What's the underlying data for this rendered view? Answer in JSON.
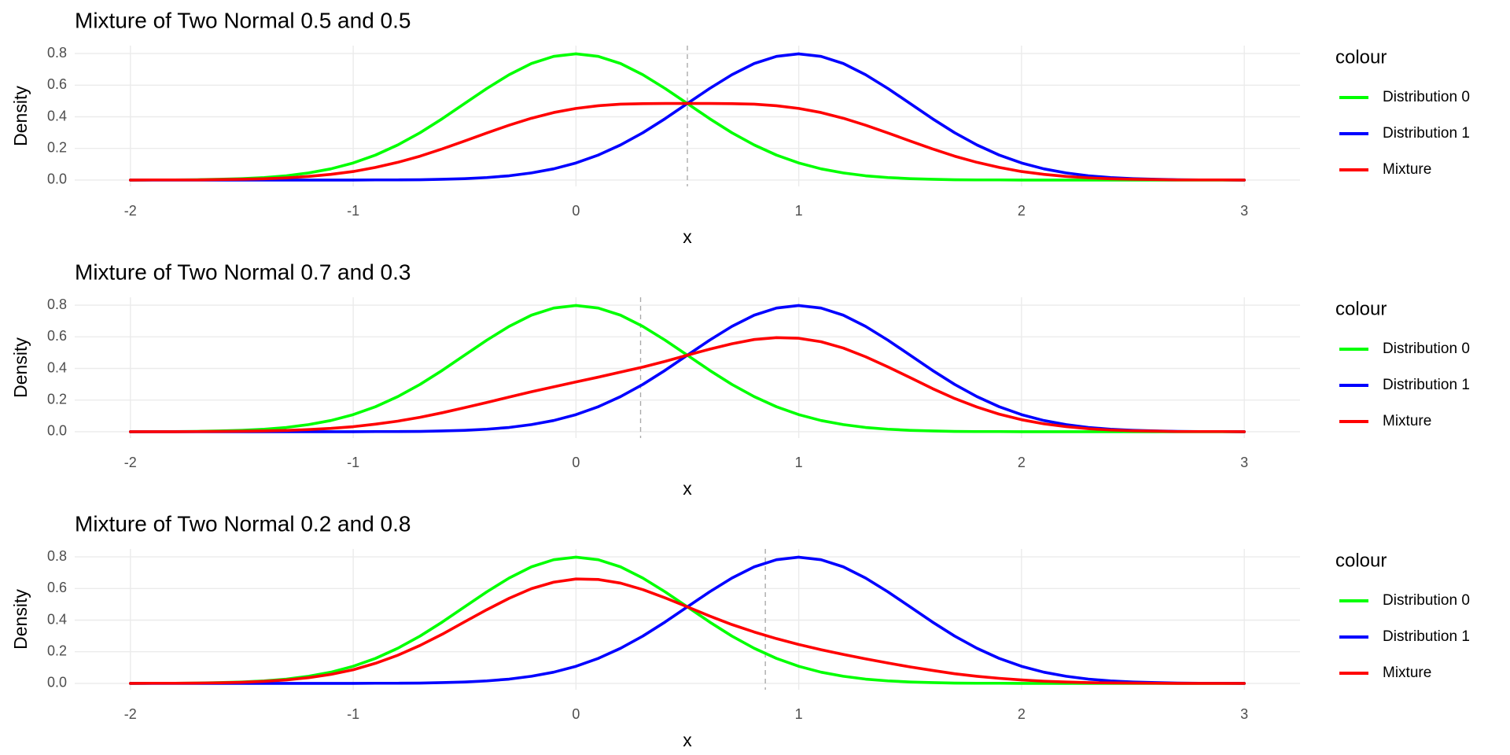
{
  "chart_data": [
    {
      "type": "line",
      "title": "Mixture of Two Normal 0.5 and 0.5",
      "x_label": "x",
      "y_label": "Density",
      "legend_title": "colour",
      "legend": "right",
      "grid": true,
      "xlim": [
        -2.25,
        3.25
      ],
      "ylim": [
        -0.04,
        0.85
      ],
      "xticks": [
        -2,
        -1,
        0,
        1,
        2,
        3
      ],
      "yticks": [
        {
          "value": 0,
          "label": "0.0"
        },
        0.2,
        0.4,
        0.6,
        0.8
      ],
      "vline": 0.5,
      "vline_color": "#aaaaaa",
      "x": [
        -2,
        -1.9,
        -1.8,
        -1.7,
        -1.6,
        -1.5,
        -1.4,
        -1.3,
        -1.2,
        -1.1,
        -1,
        -0.9,
        -0.8,
        -0.7,
        -0.6,
        -0.5,
        -0.4,
        -0.3,
        -0.2,
        -0.1,
        0,
        0.1,
        0.2,
        0.3,
        0.4,
        0.5,
        0.6,
        0.7,
        0.8,
        0.9,
        1,
        1.1,
        1.2,
        1.3,
        1.4,
        1.5,
        1.6,
        1.7,
        1.8,
        1.9,
        2,
        2.1,
        2.2,
        2.3,
        2.4,
        2.5,
        2.6,
        2.7,
        2.8,
        2.9,
        3
      ],
      "series": [
        {
          "name": "Distribution 0",
          "color": "#00ff00",
          "values": [
            0,
            0.001,
            0.001,
            0.002,
            0.005,
            0.009,
            0.016,
            0.027,
            0.045,
            0.071,
            0.108,
            0.158,
            0.222,
            0.299,
            0.388,
            0.484,
            0.579,
            0.666,
            0.737,
            0.782,
            0.798,
            0.782,
            0.737,
            0.666,
            0.579,
            0.484,
            0.388,
            0.299,
            0.222,
            0.158,
            0.108,
            0.071,
            0.045,
            0.027,
            0.016,
            0.009,
            0.005,
            0.002,
            0.001,
            0.001,
            0,
            0,
            0,
            0,
            0,
            0,
            0,
            0,
            0,
            0,
            0
          ]
        },
        {
          "name": "Distribution 1",
          "color": "#0000ff",
          "values": [
            0,
            0,
            0,
            0,
            0,
            0,
            0,
            0,
            0,
            0,
            0,
            0.001,
            0.001,
            0.002,
            0.005,
            0.009,
            0.016,
            0.027,
            0.045,
            0.071,
            0.108,
            0.158,
            0.222,
            0.299,
            0.388,
            0.484,
            0.579,
            0.666,
            0.737,
            0.782,
            0.798,
            0.782,
            0.737,
            0.666,
            0.579,
            0.484,
            0.388,
            0.299,
            0.222,
            0.158,
            0.108,
            0.071,
            0.045,
            0.027,
            0.016,
            0.009,
            0.005,
            0.002,
            0.001,
            0.001,
            0
          ]
        },
        {
          "name": "Mixture",
          "color": "#ff0000",
          "values": [
            0,
            0.001,
            0.001,
            0.001,
            0.003,
            0.005,
            0.008,
            0.014,
            0.023,
            0.036,
            0.054,
            0.08,
            0.112,
            0.151,
            0.197,
            0.247,
            0.298,
            0.347,
            0.391,
            0.427,
            0.453,
            0.47,
            0.48,
            0.483,
            0.484,
            0.484,
            0.484,
            0.483,
            0.48,
            0.47,
            0.453,
            0.427,
            0.391,
            0.347,
            0.298,
            0.247,
            0.197,
            0.151,
            0.112,
            0.08,
            0.054,
            0.036,
            0.023,
            0.014,
            0.008,
            0.005,
            0.003,
            0.001,
            0.001,
            0.001,
            0
          ]
        }
      ]
    },
    {
      "type": "line",
      "title": "Mixture of Two Normal 0.7 and 0.3",
      "x_label": "x",
      "y_label": "Density",
      "legend_title": "colour",
      "legend": "right",
      "grid": true,
      "xlim": [
        -2.25,
        3.25
      ],
      "ylim": [
        -0.04,
        0.85
      ],
      "xticks": [
        -2,
        -1,
        0,
        1,
        2,
        3
      ],
      "yticks": [
        {
          "value": 0,
          "label": "0.0"
        },
        0.2,
        0.4,
        0.6,
        0.8
      ],
      "vline": 0.29,
      "vline_color": "#aaaaaa",
      "x": [
        -2,
        -1.9,
        -1.8,
        -1.7,
        -1.6,
        -1.5,
        -1.4,
        -1.3,
        -1.2,
        -1.1,
        -1,
        -0.9,
        -0.8,
        -0.7,
        -0.6,
        -0.5,
        -0.4,
        -0.3,
        -0.2,
        -0.1,
        0,
        0.1,
        0.2,
        0.3,
        0.4,
        0.5,
        0.6,
        0.7,
        0.8,
        0.9,
        1,
        1.1,
        1.2,
        1.3,
        1.4,
        1.5,
        1.6,
        1.7,
        1.8,
        1.9,
        2,
        2.1,
        2.2,
        2.3,
        2.4,
        2.5,
        2.6,
        2.7,
        2.8,
        2.9,
        3
      ],
      "series": [
        {
          "name": "Distribution 0",
          "color": "#00ff00",
          "values": [
            0,
            0.001,
            0.001,
            0.002,
            0.005,
            0.009,
            0.016,
            0.027,
            0.045,
            0.071,
            0.108,
            0.158,
            0.222,
            0.299,
            0.388,
            0.484,
            0.579,
            0.666,
            0.737,
            0.782,
            0.798,
            0.782,
            0.737,
            0.666,
            0.579,
            0.484,
            0.388,
            0.299,
            0.222,
            0.158,
            0.108,
            0.071,
            0.045,
            0.027,
            0.016,
            0.009,
            0.005,
            0.002,
            0.001,
            0.001,
            0,
            0,
            0,
            0,
            0,
            0,
            0,
            0,
            0,
            0,
            0
          ]
        },
        {
          "name": "Distribution 1",
          "color": "#0000ff",
          "values": [
            0,
            0,
            0,
            0,
            0,
            0,
            0,
            0,
            0,
            0,
            0,
            0.001,
            0.001,
            0.002,
            0.005,
            0.009,
            0.016,
            0.027,
            0.045,
            0.071,
            0.108,
            0.158,
            0.222,
            0.299,
            0.388,
            0.484,
            0.579,
            0.666,
            0.737,
            0.782,
            0.798,
            0.782,
            0.737,
            0.666,
            0.579,
            0.484,
            0.388,
            0.299,
            0.222,
            0.158,
            0.108,
            0.071,
            0.045,
            0.027,
            0.016,
            0.009,
            0.005,
            0.002,
            0.001,
            0.001,
            0
          ]
        },
        {
          "name": "Mixture",
          "color": "#ff0000",
          "values": [
            0,
            0,
            0,
            0.001,
            0.002,
            0.003,
            0.005,
            0.008,
            0.014,
            0.021,
            0.032,
            0.048,
            0.067,
            0.091,
            0.12,
            0.152,
            0.185,
            0.219,
            0.253,
            0.284,
            0.315,
            0.345,
            0.377,
            0.409,
            0.445,
            0.484,
            0.522,
            0.556,
            0.583,
            0.595,
            0.591,
            0.569,
            0.529,
            0.474,
            0.41,
            0.342,
            0.273,
            0.21,
            0.156,
            0.111,
            0.076,
            0.05,
            0.032,
            0.019,
            0.011,
            0.006,
            0.004,
            0.001,
            0.001,
            0.001,
            0
          ]
        }
      ]
    },
    {
      "type": "line",
      "title": "Mixture of Two Normal 0.2 and 0.8",
      "x_label": "x",
      "y_label": "Density",
      "legend_title": "colour",
      "legend": "right",
      "grid": true,
      "xlim": [
        -2.25,
        3.25
      ],
      "ylim": [
        -0.04,
        0.85
      ],
      "xticks": [
        -2,
        -1,
        0,
        1,
        2,
        3
      ],
      "yticks": [
        {
          "value": 0,
          "label": "0.0"
        },
        0.2,
        0.4,
        0.6,
        0.8
      ],
      "vline": 0.85,
      "vline_color": "#aaaaaa",
      "x": [
        -2,
        -1.9,
        -1.8,
        -1.7,
        -1.6,
        -1.5,
        -1.4,
        -1.3,
        -1.2,
        -1.1,
        -1,
        -0.9,
        -0.8,
        -0.7,
        -0.6,
        -0.5,
        -0.4,
        -0.3,
        -0.2,
        -0.1,
        0,
        0.1,
        0.2,
        0.3,
        0.4,
        0.5,
        0.6,
        0.7,
        0.8,
        0.9,
        1,
        1.1,
        1.2,
        1.3,
        1.4,
        1.5,
        1.6,
        1.7,
        1.8,
        1.9,
        2,
        2.1,
        2.2,
        2.3,
        2.4,
        2.5,
        2.6,
        2.7,
        2.8,
        2.9,
        3
      ],
      "series": [
        {
          "name": "Distribution 0",
          "color": "#00ff00",
          "values": [
            0,
            0.001,
            0.001,
            0.002,
            0.005,
            0.009,
            0.016,
            0.027,
            0.045,
            0.071,
            0.108,
            0.158,
            0.222,
            0.299,
            0.388,
            0.484,
            0.579,
            0.666,
            0.737,
            0.782,
            0.798,
            0.782,
            0.737,
            0.666,
            0.579,
            0.484,
            0.388,
            0.299,
            0.222,
            0.158,
            0.108,
            0.071,
            0.045,
            0.027,
            0.016,
            0.009,
            0.005,
            0.002,
            0.001,
            0.001,
            0,
            0,
            0,
            0,
            0,
            0,
            0,
            0,
            0,
            0,
            0
          ]
        },
        {
          "name": "Distribution 1",
          "color": "#0000ff",
          "values": [
            0,
            0,
            0,
            0,
            0,
            0,
            0,
            0,
            0,
            0,
            0,
            0.001,
            0.001,
            0.002,
            0.005,
            0.009,
            0.016,
            0.027,
            0.045,
            0.071,
            0.108,
            0.158,
            0.222,
            0.299,
            0.388,
            0.484,
            0.579,
            0.666,
            0.737,
            0.782,
            0.798,
            0.782,
            0.737,
            0.666,
            0.579,
            0.484,
            0.388,
            0.299,
            0.222,
            0.158,
            0.108,
            0.071,
            0.045,
            0.027,
            0.016,
            0.009,
            0.005,
            0.002,
            0.001,
            0.001,
            0
          ]
        },
        {
          "name": "Mixture",
          "color": "#ff0000",
          "values": [
            0,
            0.001,
            0.001,
            0.002,
            0.004,
            0.007,
            0.013,
            0.022,
            0.036,
            0.057,
            0.086,
            0.127,
            0.178,
            0.24,
            0.311,
            0.389,
            0.466,
            0.538,
            0.599,
            0.64,
            0.66,
            0.657,
            0.634,
            0.593,
            0.541,
            0.484,
            0.426,
            0.372,
            0.325,
            0.283,
            0.246,
            0.213,
            0.183,
            0.155,
            0.129,
            0.104,
            0.082,
            0.061,
            0.045,
            0.032,
            0.022,
            0.014,
            0.009,
            0.005,
            0.003,
            0.002,
            0.001,
            0,
            0,
            0,
            0
          ]
        }
      ]
    }
  ]
}
